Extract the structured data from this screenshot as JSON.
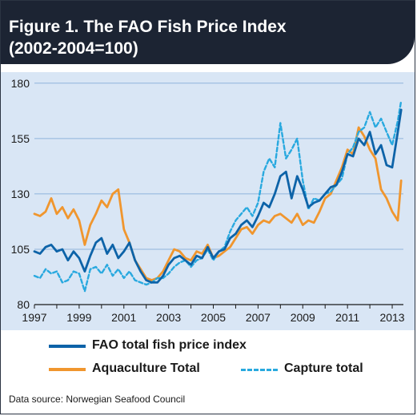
{
  "header": {
    "title_line1": "Figure 1. The FAO Fish Price Index",
    "title_line2": "(2002-2004=100)"
  },
  "source": "Data source: Norwegian Seafood Council",
  "colors": {
    "header_bg": "#1c2433",
    "plot_bg": "#d9e6f5",
    "gridline": "#8fb4dc",
    "fao": "#0d63a8",
    "aquaculture": "#f0962e",
    "capture": "#29a9df"
  },
  "chart_data": {
    "type": "line",
    "title": "Figure 1. The FAO Fish Price Index (2002-2004=100)",
    "xlim": [
      1997,
      2013.5
    ],
    "ylim": [
      80,
      185
    ],
    "x_ticks": [
      1997,
      1999,
      2001,
      2003,
      2005,
      2007,
      2009,
      2011,
      2013
    ],
    "y_ticks": [
      80,
      105,
      130,
      155,
      180
    ],
    "grid": "horizontal",
    "legend_placement": "bottom",
    "series": [
      {
        "name": "FAO total fish price index",
        "style": "solid",
        "color": "#0d63a8",
        "x": [
          1997.0,
          1997.25,
          1997.5,
          1997.75,
          1998.0,
          1998.25,
          1998.5,
          1998.75,
          1999.0,
          1999.25,
          1999.5,
          1999.75,
          2000.0,
          2000.25,
          2000.5,
          2000.75,
          2001.0,
          2001.25,
          2001.5,
          2001.75,
          2002.0,
          2002.25,
          2002.5,
          2002.75,
          2003.0,
          2003.25,
          2003.5,
          2003.75,
          2004.0,
          2004.25,
          2004.5,
          2004.75,
          2005.0,
          2005.25,
          2005.5,
          2005.75,
          2006.0,
          2006.25,
          2006.5,
          2006.75,
          2007.0,
          2007.25,
          2007.5,
          2007.75,
          2008.0,
          2008.25,
          2008.5,
          2008.75,
          2009.0,
          2009.25,
          2009.5,
          2009.75,
          2010.0,
          2010.25,
          2010.5,
          2010.75,
          2011.0,
          2011.25,
          2011.5,
          2011.75,
          2012.0,
          2012.25,
          2012.5,
          2012.75,
          2013.0,
          2013.25,
          2013.4
        ],
        "y": [
          104,
          103,
          106,
          107,
          104,
          105,
          100,
          104,
          101,
          95,
          102,
          108,
          110,
          103,
          107,
          101,
          104,
          108,
          100,
          95,
          91,
          90,
          90,
          93,
          98,
          101,
          102,
          100,
          98,
          102,
          101,
          106,
          101,
          104,
          105,
          110,
          112,
          116,
          118,
          115,
          120,
          126,
          124,
          130,
          138,
          140,
          128,
          138,
          132,
          124,
          126,
          127,
          130,
          133,
          134,
          140,
          148,
          147,
          155,
          152,
          158,
          148,
          152,
          143,
          142,
          158,
          168
        ]
      },
      {
        "name": "Aquaculture Total",
        "style": "solid",
        "color": "#f0962e",
        "x": [
          1997.0,
          1997.25,
          1997.5,
          1997.75,
          1998.0,
          1998.25,
          1998.5,
          1998.75,
          1999.0,
          1999.25,
          1999.5,
          1999.75,
          2000.0,
          2000.25,
          2000.5,
          2000.75,
          2001.0,
          2001.25,
          2001.5,
          2001.75,
          2002.0,
          2002.25,
          2002.5,
          2002.75,
          2003.0,
          2003.25,
          2003.5,
          2003.75,
          2004.0,
          2004.25,
          2004.5,
          2004.75,
          2005.0,
          2005.25,
          2005.5,
          2005.75,
          2006.0,
          2006.25,
          2006.5,
          2006.75,
          2007.0,
          2007.25,
          2007.5,
          2007.75,
          2008.0,
          2008.25,
          2008.5,
          2008.75,
          2009.0,
          2009.25,
          2009.5,
          2009.75,
          2010.0,
          2010.25,
          2010.5,
          2010.75,
          2011.0,
          2011.25,
          2011.5,
          2011.75,
          2012.0,
          2012.25,
          2012.5,
          2012.75,
          2013.0,
          2013.25,
          2013.4
        ],
        "y": [
          121,
          120,
          122,
          128,
          121,
          124,
          119,
          123,
          118,
          107,
          116,
          121,
          127,
          124,
          130,
          132,
          114,
          108,
          100,
          96,
          92,
          91,
          92,
          95,
          100,
          105,
          104,
          101,
          100,
          104,
          103,
          107,
          101,
          102,
          104,
          106,
          110,
          114,
          115,
          112,
          116,
          118,
          117,
          120,
          121,
          119,
          117,
          121,
          116,
          118,
          117,
          122,
          128,
          130,
          136,
          142,
          150,
          148,
          160,
          156,
          150,
          146,
          132,
          128,
          122,
          118,
          136
        ]
      },
      {
        "name": "Capture total",
        "style": "dashed",
        "color": "#29a9df",
        "x": [
          1997.0,
          1997.25,
          1997.5,
          1997.75,
          1998.0,
          1998.25,
          1998.5,
          1998.75,
          1999.0,
          1999.25,
          1999.5,
          1999.75,
          2000.0,
          2000.25,
          2000.5,
          2000.75,
          2001.0,
          2001.25,
          2001.5,
          2001.75,
          2002.0,
          2002.25,
          2002.5,
          2002.75,
          2003.0,
          2003.25,
          2003.5,
          2003.75,
          2004.0,
          2004.25,
          2004.5,
          2004.75,
          2005.0,
          2005.25,
          2005.5,
          2005.75,
          2006.0,
          2006.25,
          2006.5,
          2006.75,
          2007.0,
          2007.25,
          2007.5,
          2007.75,
          2008.0,
          2008.25,
          2008.5,
          2008.75,
          2009.0,
          2009.25,
          2009.5,
          2009.75,
          2010.0,
          2010.25,
          2010.5,
          2010.75,
          2011.0,
          2011.25,
          2011.5,
          2011.75,
          2012.0,
          2012.25,
          2012.5,
          2012.75,
          2013.0,
          2013.25,
          2013.4
        ],
        "y": [
          93,
          92,
          96,
          94,
          95,
          90,
          91,
          95,
          94,
          86,
          96,
          97,
          94,
          98,
          93,
          96,
          92,
          95,
          91,
          90,
          89,
          90,
          92,
          92,
          94,
          97,
          99,
          100,
          97,
          100,
          101,
          105,
          100,
          104,
          106,
          113,
          118,
          121,
          124,
          120,
          126,
          140,
          146,
          142,
          162,
          146,
          150,
          155,
          136,
          123,
          128,
          127,
          130,
          131,
          134,
          137,
          148,
          151,
          158,
          160,
          167,
          160,
          164,
          158,
          152,
          163,
          172
        ]
      }
    ]
  }
}
